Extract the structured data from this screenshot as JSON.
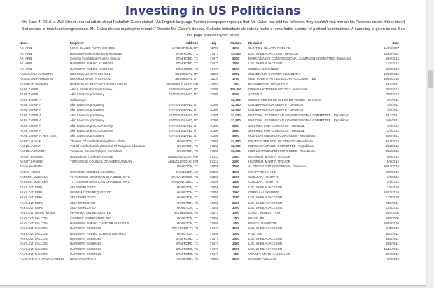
{
  "title": "Investing in US Politicians",
  "intro": "On June 4, 2010, a Wall Street Journal article about Fethullah Gulen stated: \"An English-language Turkish newspaper reported that Mr. Gulen has told his followers they couldn't visit him on his Poconos estate if they didn't first donate to their local congressman. Mr. Gulen denies making the remark.\"  Despite Mr. Gulen's denials, Gulenist individuals do indeed make a remarkable number of political contributions.  A sampling is given below.  See this page specifically for Texas.",
  "columns": {
    "name": "Name",
    "employer": "Employer",
    "address": "Address",
    "zip": "Zip",
    "amount": "Amount",
    "recipient": "Recipient",
    "date": "Date"
  },
  "rows": [
    [
      "AK, AKIN",
      "LONG ISLAND PARTY SCHOOL",
      "LAKE GROVE, NY",
      "11755",
      "1000",
      "CLINTON, HILLARY RODHAM",
      "11/27/2007"
    ],
    [
      "AK, AKIN",
      "Harmony Public Schools/Administrator",
      "STAFFORD, TX",
      "77477",
      "$1,000",
      "LEE, SHEILA JACKSON - Democrat",
      "11/16/2011"
    ],
    [
      "AK, AKIN",
      "Cosmos Foundation/Finance Director",
      "STAFFORD, TX",
      "77477",
      "$250",
      "MARC VEASEY CONGRESSIONAL CAMPAIGN COMMITTEE - Democrat",
      "4/24/2012"
    ],
    [
      "AK, AKIN",
      "HARMONY PUBLIC SCHOOLS",
      "STAFFORD, TX",
      "77477",
      "1000",
      "LEE, SHEILA JACKSON",
      "11/2/2012"
    ],
    [
      "AK, AKIN",
      "HARMONY PUBLIC SCHOOLS",
      "STAFFORD, TX",
      "77477",
      "2500",
      "GREEN, ALEXANDER",
      "4/26/2010"
    ],
    [
      "AKBAS, MUHAMMET M",
      "BROOKLYN AMITY SCHOOL",
      "BROOKLYN, NY",
      "11230",
      "2350",
      "GILLIBRAND, KIRSTEN ELIZABETH",
      "10/26/2010"
    ],
    [
      "AKBAS, MUHAMMET M",
      "BROOKLYN AMITY SCHOOL",
      "BROOKLYN, NY",
      "11230",
      "1750",
      "NEW YORK STATE DEMOCRATIC COMMITTEE",
      "10/26/2010"
    ],
    [
      "AKBULUT, VOLKAN",
      "HORIZON SCIENCE ACADEMY LORAIN",
      "SHEFFIELD LAKE, OH",
      "44054",
      "700",
      "RICHARDSON, RICHARD E",
      "9/16/2011"
    ],
    [
      "AKIN, ZAFER",
      "Akin & Smith/Attorney/Attorney",
      "STATEN ISLAND, NY",
      "10305",
      "$35,800",
      "OBAMA VICTORY FUND 2012 - Democrat",
      "2/27/2012"
    ],
    [
      "AKIN, ZAFER",
      "Akin Law Group/Attorney",
      "STATEN ISLAND, NY",
      "10305",
      "$200",
      "ACTBLUE",
      "2/29/2012"
    ],
    [
      "AKIN, ZAFER A",
      "Self/Lawyer",
      "",
      "",
      "$1,000",
      "COMMITTEE TO RE-ELECT ED TOWNS - Democrat",
      "2/7/2011"
    ],
    [
      "AKIN, ZAFER A",
      "Akin Law Group/Attorney",
      "STATEN ISLAND, NY",
      "10305",
      "$2,500",
      "GILLIBRAND FOR SENATE - Democrat",
      "4/5/2011"
    ],
    [
      "AKIN, ZAFER A",
      "Akin Law Group/Attorney",
      "STATEN ISLAND, NY",
      "10305",
      "$2,500",
      "GILLIBRAND FOR SENATE - Democrat",
      "4/5/2011"
    ],
    [
      "AKIN, ZAFER A",
      "Akin Law Group/Attorney",
      "STATEN ISLAND, NY",
      "10305",
      "$2,000",
      "NATIONAL REPUBLICAN CONGRESSIONAL COMMITTEE - Republican",
      "4/13/2011"
    ],
    [
      "AKIN, ZAFER A",
      "Akin Law Group/Attorney",
      "STATEN ISLAND, NY",
      "10305",
      "$2,500",
      "NATIONAL REPUBLICAN CONGRESSIONAL COMMITTEE - Republican",
      "10/6/2011"
    ],
    [
      "AKIN, ZAFER A",
      "Akin Law Group PLLC/Attorney",
      "STATEN ISLAND, NY",
      "10305",
      "$500",
      "JEFFRIES FOR CONGRESS - Democrat",
      "3/5/2012"
    ],
    [
      "AKIN, ZAFER A",
      "Akin Law Group PLLC/Attorney",
      "STATEN ISLAND, NY",
      "10305",
      "$500",
      "JEFFRIES FOR CONGRESS - Democrat",
      "3/5/2012"
    ],
    [
      "AKIN, ZAFER A. MR. ESQ.",
      "Akin Law Group/Attorney",
      "STATEN ISLAND, NY",
      "10305",
      "$500",
      "ROS-LEHTINEN FOR CONGRESS - Republican",
      "6/29/2011"
    ],
    [
      "AKINCI, ADEM",
      "The Inst. Of Interfaith Dialog/Exec Affairs",
      "HOUSTON, TX",
      "77055",
      "$2,500",
      "DAVID VITTER FOR US SENATE - Republican",
      "9/11/2012"
    ],
    [
      "AKINCI, ADEM",
      "Inst Of Interfaith Dialog/Director Of Religious Education",
      "HOUSTON, TX",
      "77055",
      "$2,500",
      "ROYCE CAMPAIGN COMMITTEE - Republican",
      "8/21/2012"
    ],
    [
      "AKINCI, ADEM DR.",
      "Turquoise Council/Religion Consultant",
      "HOUSTON, TX",
      "77055",
      "$1,000",
      "ROS-LEHTINEN FOR CONGRESS - Republican",
      "8/13/2012"
    ],
    [
      "AKSOY, HABIBE",
      "RAIN DROP TURKISH HOUSE",
      "ALBUQUERQUE, NM",
      "87112",
      "2400",
      "HEINRICH, MARTIN TREVOR",
      "9/8/2012"
    ],
    [
      "AKSOY, HABIBE",
      "TURQUOISE COUNCIL OF AMERICANS AN",
      "ALBUQUERQUE, NM",
      "87112",
      "2400",
      "HEINRICH, MARTIN TREVOR",
      "9/8/2012"
    ],
    [
      "Aksoy, Kudbettin",
      "",
      "HOUSTON, TX",
      "77055",
      "1000",
      "AL GREEN FOR CONGRESS - Democrat",
      "10/12/2010"
    ],
    [
      "AKTAS, ADEM",
      "PARAGON SCIENCE ACADEMY",
      "CHANDLER, AZ",
      "85226",
      "1000",
      "KIRKPATRICK, ANN",
      "5/26/2012"
    ],
    [
      "AKTEPE, MUSTAFA",
      "TX TURKISH AMERICAN CHAMBER, SA C",
      "SAN ANTONIO, TX",
      "78255",
      "1500",
      "CUELLAR, HENRY R.",
      "3/6/2012"
    ],
    [
      "AKTEPE, MUSTAFA",
      "TX TURKISH AMERICAN CHAMBER, SA C",
      "SAN ANTONIO, TX",
      "78255",
      "1500",
      "CUELLAR, HENRY R.",
      "3/6/2012"
    ],
    [
      "AKYILDIZ, EBRU",
      "SELF EMPLOYED",
      "HOUSTON, TX",
      "77055",
      "1000",
      "LEE, SHEILA JACKSON",
      "2/1/2010"
    ],
    [
      "AKYILDIZ, EBRU",
      "INFORMATION REQUESTED",
      "HOUSTON, TX",
      "77055",
      "1000",
      "GREEN, ALEXANDER",
      "10/12/2010"
    ],
    [
      "AKYILDIZ, EBRU",
      "SELF EMPLOYED",
      "HOUSTON, TX",
      "77055",
      "1200",
      "LEE, SHEILA JACKSON",
      "11/1/2010"
    ],
    [
      "AKYILDIZ, EBRU",
      "SELF EMPLOYED",
      "HOUSTON, TX",
      "77055",
      "2400",
      "LEE, SHEILA JACKSON",
      "8/28/2011"
    ],
    [
      "AKYILDIZ, EBRU",
      "SELF EMPLOYED",
      "HOUSTON, TX",
      "77055",
      "2000",
      "LEE, SHEILA JACKSON",
      "11/2/2012"
    ],
    [
      "AKYILDIZ, UGUR (Mr.gur)",
      "INFORMATION REQUESTED",
      "BETHLEHEM, PA",
      "18017",
      "1000",
      "CASEY, ROBERT P JR",
      "6/24/2006"
    ],
    [
      "AKYILDIZ, FALCON",
      "COSMOS FOUNDATION, INC.",
      "HOUSTON, TX",
      "77055",
      "750",
      "WHITE, BILL",
      "6/25/2009"
    ],
    [
      "AKYILDIZ, FALCON",
      "HARMONY PUBLIC CHARTER SCHOOLS",
      "HOUSTON, TX",
      "77055",
      "500",
      "REYES, SILVESTRE",
      "10/15/2010"
    ],
    [
      "AKYILDIZ, FALCON",
      "HARMONY SCHOOLS",
      "STAFFORD TT, TX",
      "77477",
      "1200",
      "LEE, SHEILA JACKSON",
      "11/1/2010"
    ],
    [
      "AKYILDIZ, FALCON",
      "HARMONY PUBLIC SCHOOL DISTRICT",
      "HOUSTON, TX",
      "77055",
      "1000",
      "POE, TED",
      "3/31/2011"
    ],
    [
      "AKYILDIZ, FALCON",
      "HARMONY SCHOOLS",
      "STAFFORD, TX",
      "77477",
      "2400",
      "LEE, SHEILA JACKSON",
      "8/28/2011"
    ],
    [
      "AKYILDIZ, FALCON",
      "HARMONY SCHOOLS",
      "STAFFORD, TX",
      "77477",
      "2400",
      "LEE, SHEILA JACKSON",
      "8/28/2011"
    ],
    [
      "AKYILDIZ, FALCON",
      "HARMONY SCHOOLS",
      "STAFFORD, TX",
      "77477",
      "2500",
      "LEE, SHEILA JACKSON",
      "11/16/2011"
    ],
    [
      "AKYILDIZ, FALCON",
      "HARMONY SCHOOLS",
      "STAFFORD, TX",
      "77477",
      "250",
      "VEASEY, MARC ALLISON MR.",
      "4/24/2012"
    ],
    [
      "ALACAPTAS, HARUN AARON B",
      "RINEHITEN TECH",
      "HOUSTON, TX",
      "77055",
      "2500",
      "CASSIDY, WILLIAM",
      "5/9/2012"
    ]
  ],
  "colors": {
    "title": "#3b3d8c"
  }
}
